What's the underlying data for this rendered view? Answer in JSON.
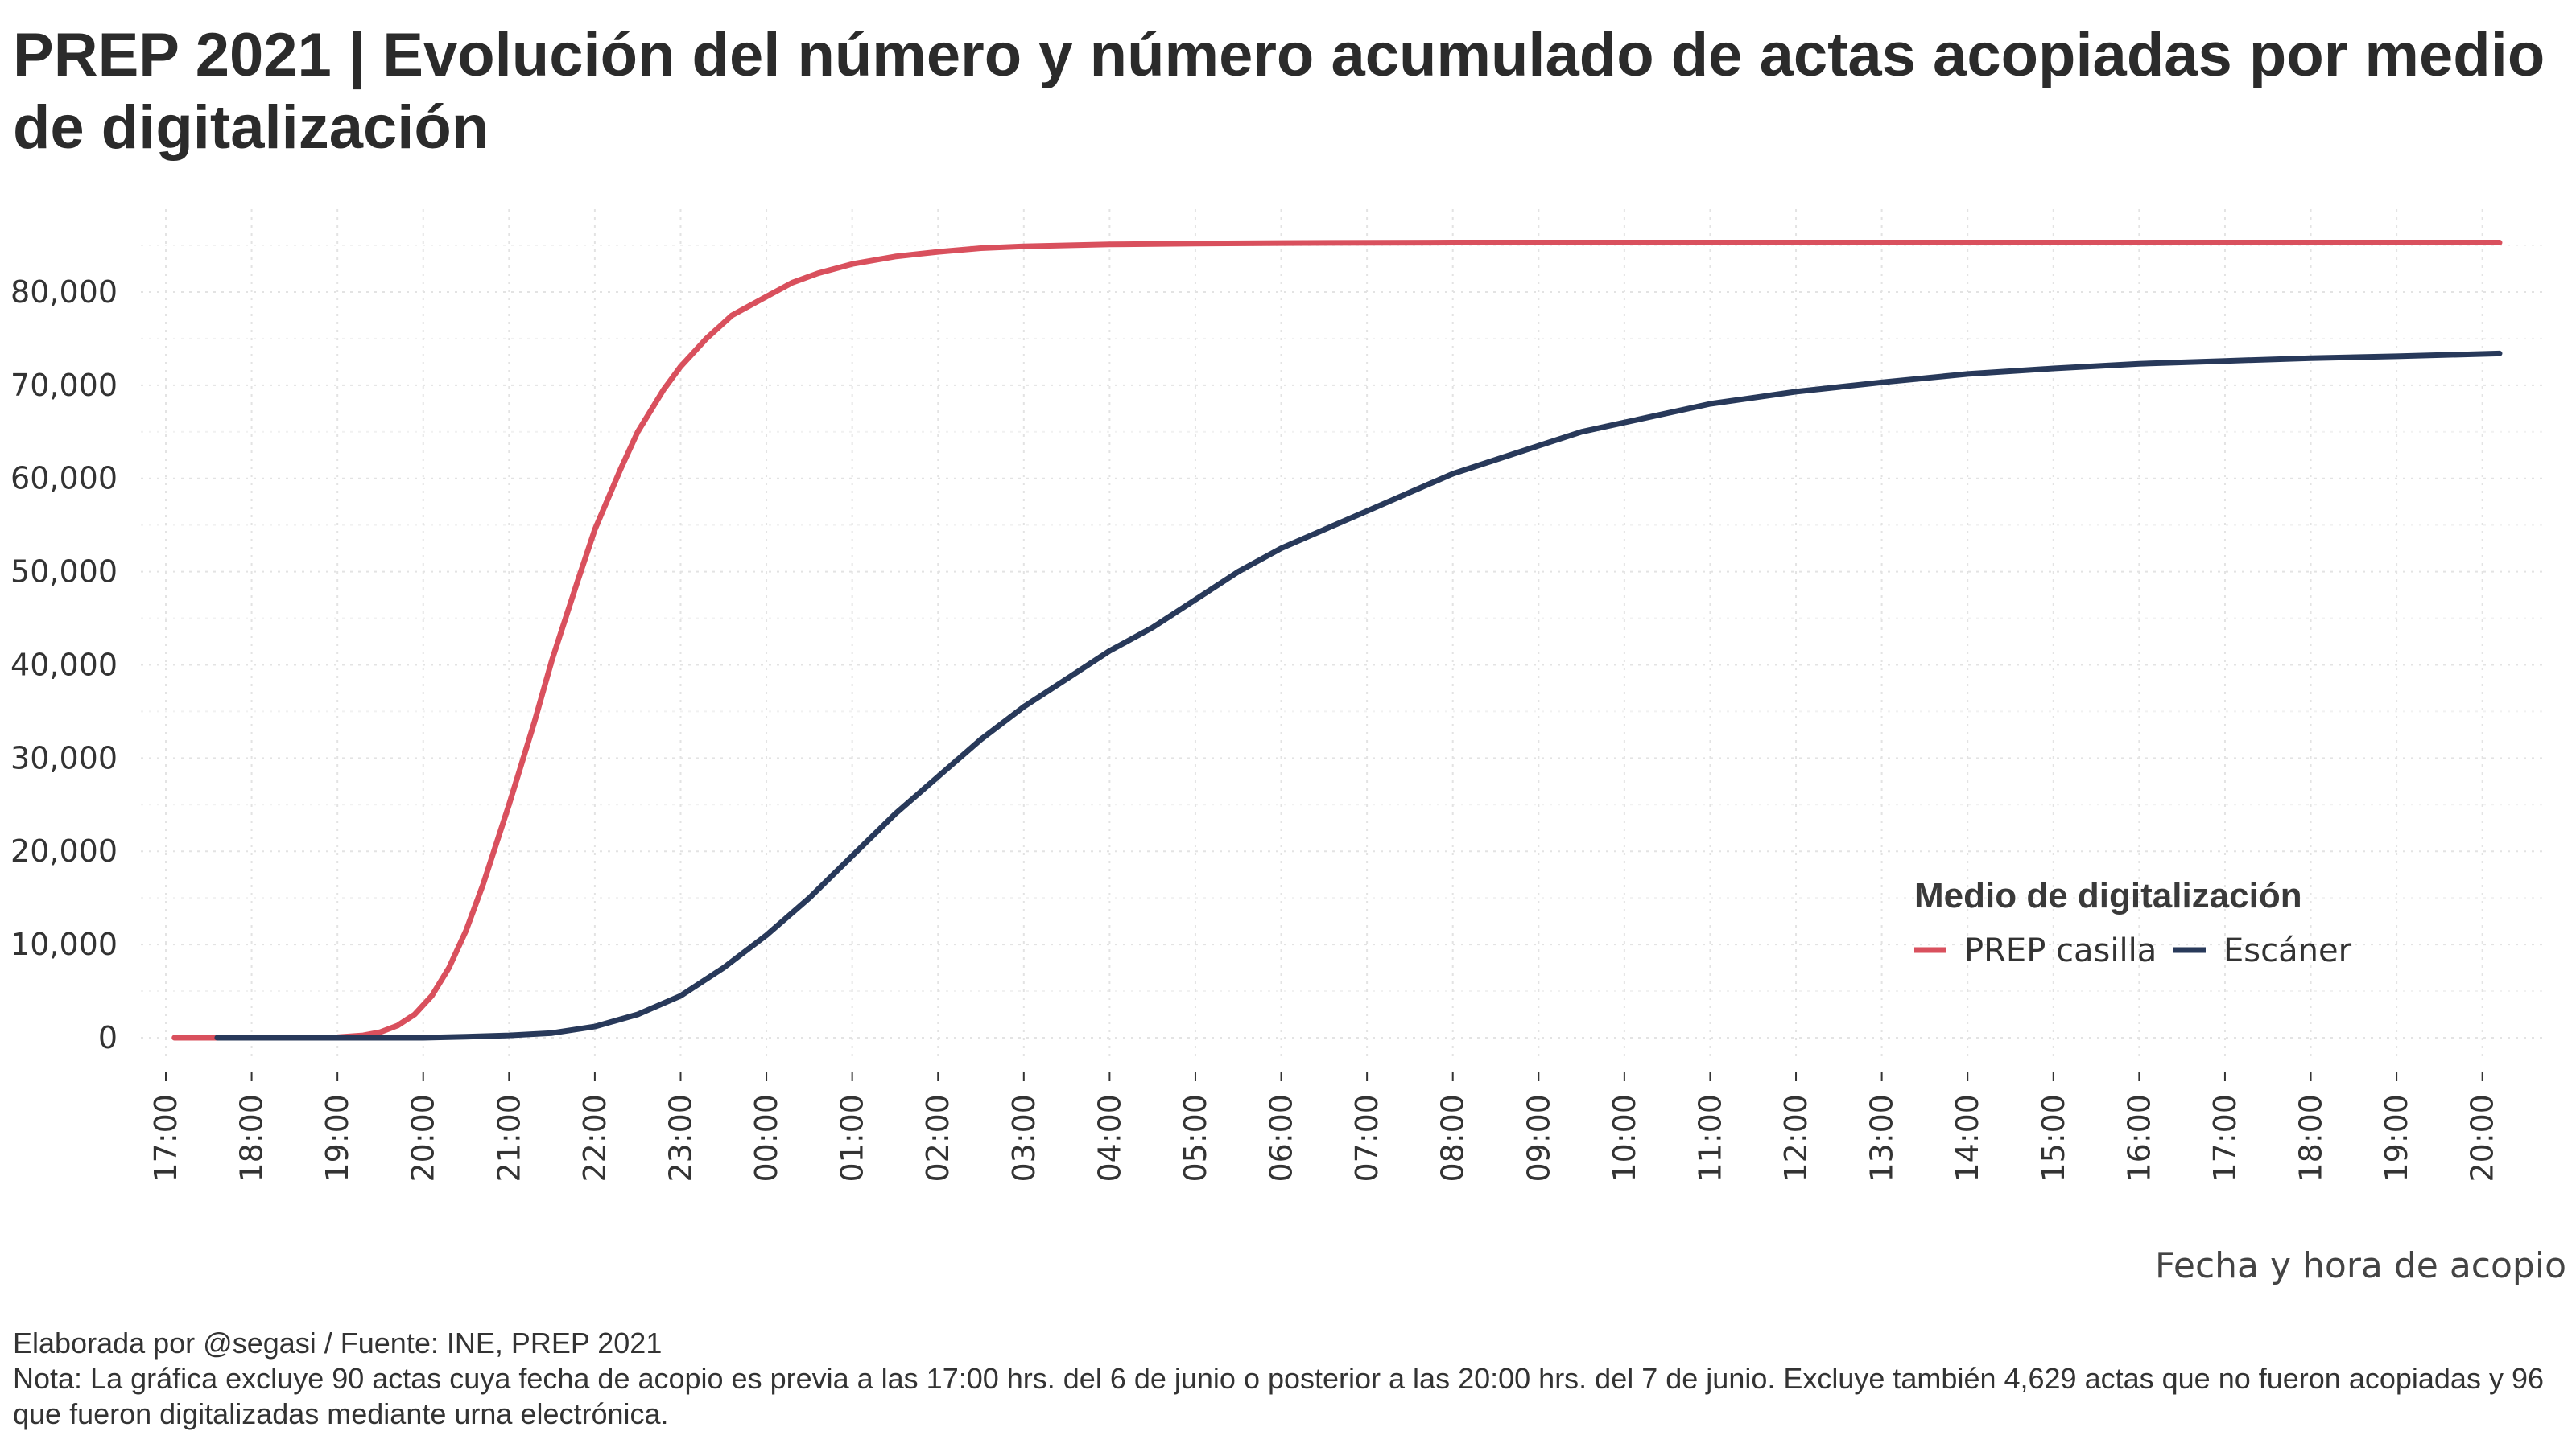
{
  "chart_data": {
    "type": "line",
    "title": "PREP 2021 | Evolución del número y número acumulado de actas acopiadas por medio de digitalización",
    "xlabel": "Fecha y hora de acopio",
    "ylabel": "",
    "ylim": [
      0,
      88000
    ],
    "xlim": [
      17,
      44.2
    ],
    "y_ticks": [
      0,
      10000,
      20000,
      30000,
      40000,
      50000,
      60000,
      70000,
      80000
    ],
    "y_tick_labels": [
      "0",
      "10,000",
      "20,000",
      "30,000",
      "40,000",
      "50,000",
      "60,000",
      "70,000",
      "80,000"
    ],
    "x_ticks": [
      17,
      18,
      19,
      20,
      21,
      22,
      23,
      24,
      25,
      26,
      27,
      28,
      29,
      30,
      31,
      32,
      33,
      34,
      35,
      36,
      37,
      38,
      39,
      40,
      41,
      42,
      43,
      44
    ],
    "x_tick_labels": [
      "17:00",
      "18:00",
      "19:00",
      "20:00",
      "21:00",
      "22:00",
      "23:00",
      "00:00",
      "01:00",
      "02:00",
      "03:00",
      "04:00",
      "05:00",
      "06:00",
      "07:00",
      "08:00",
      "09:00",
      "10:00",
      "11:00",
      "12:00",
      "13:00",
      "14:00",
      "15:00",
      "16:00",
      "17:00",
      "18:00",
      "19:00",
      "20:00"
    ],
    "grid": true,
    "legend": {
      "title": "Medio de digitalización",
      "position": "bottom-right"
    },
    "series": [
      {
        "name": "PREP casilla",
        "color": "#d9505d",
        "x": [
          17.1,
          17.5,
          18,
          18.5,
          19,
          19.3,
          19.5,
          19.7,
          19.9,
          20.1,
          20.3,
          20.5,
          20.7,
          21,
          21.3,
          21.5,
          21.8,
          22,
          22.3,
          22.5,
          22.8,
          23,
          23.3,
          23.6,
          24,
          24.3,
          24.6,
          25,
          25.5,
          26,
          26.5,
          27,
          28,
          29,
          30,
          32,
          35,
          40,
          44.2
        ],
        "values": [
          0,
          0,
          0,
          0,
          50,
          250,
          600,
          1300,
          2500,
          4500,
          7500,
          11500,
          16500,
          25000,
          34000,
          40500,
          49000,
          54500,
          61000,
          65000,
          69500,
          72000,
          75000,
          77500,
          79500,
          81000,
          82000,
          83000,
          83800,
          84300,
          84700,
          84900,
          85100,
          85200,
          85250,
          85300,
          85300,
          85300,
          85300
        ]
      },
      {
        "name": "Escáner",
        "color": "#28395a",
        "x": [
          17.6,
          19,
          20,
          20.5,
          21,
          21.5,
          22,
          22.5,
          23,
          23.5,
          24,
          24.5,
          25,
          25.5,
          26,
          26.5,
          27,
          27.5,
          28,
          28.5,
          29,
          29.5,
          30,
          30.5,
          31,
          31.5,
          32,
          32.5,
          33,
          33.5,
          34,
          34.5,
          35,
          36,
          37,
          38,
          39,
          40,
          41,
          42,
          43,
          44.2
        ],
        "values": [
          0,
          0,
          0,
          100,
          250,
          500,
          1200,
          2500,
          4500,
          7500,
          11000,
          15000,
          19500,
          24000,
          28000,
          32000,
          35500,
          38500,
          41500,
          44000,
          47000,
          50000,
          52500,
          54500,
          56500,
          58500,
          60500,
          62000,
          63500,
          65000,
          66000,
          67000,
          68000,
          69300,
          70300,
          71200,
          71800,
          72300,
          72600,
          72900,
          73100,
          73400
        ]
      }
    ]
  },
  "footer": {
    "credit": "Elaborada por @segasi / Fuente: INE, PREP 2021",
    "note": "Nota: La gráfica excluye 90 actas cuya fecha de acopio es previa a las 17:00 hrs. del 6 de junio o posterior a las 20:00 hrs. del 7 de junio. Excluye también 4,629 actas que no fueron acopiadas y 96 que fueron digitalizadas mediante urna electrónica."
  }
}
